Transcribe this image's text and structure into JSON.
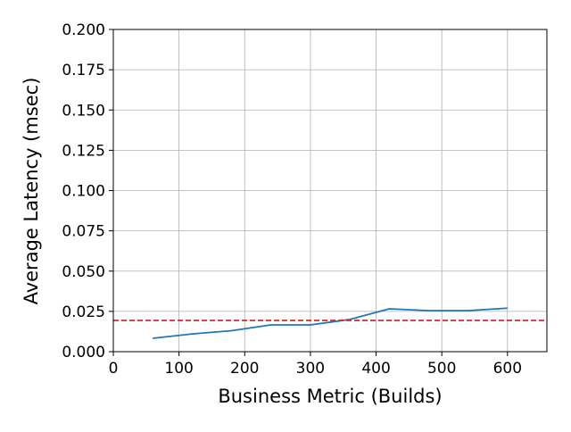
{
  "chart_data": {
    "type": "line",
    "x_label": "Business Metric (Builds)",
    "y_label": "Average Latency (msec)",
    "x": [
      60,
      120,
      180,
      240,
      300,
      360,
      420,
      480,
      540,
      600
    ],
    "series": [
      {
        "color": "#1f77b4",
        "values": [
          0.0083,
          0.011,
          0.013,
          0.0166,
          0.0166,
          0.02,
          0.0266,
          0.0255,
          0.0255,
          0.027
        ]
      }
    ],
    "reference_line": {
      "value": 0.0194,
      "color": "#d62728",
      "style": "dashed"
    },
    "xlim": [
      0,
      660
    ],
    "xticks": [
      0,
      100,
      200,
      300,
      400,
      500,
      600
    ],
    "ylim": [
      0,
      0.2
    ],
    "yticks": [
      {
        "value": 0,
        "label": "0.000"
      },
      {
        "value": 0.025,
        "label": "0.025"
      },
      {
        "value": 0.05,
        "label": "0.050"
      },
      {
        "value": 0.075,
        "label": "0.075"
      },
      {
        "value": 0.1,
        "label": "0.100"
      },
      {
        "value": 0.125,
        "label": "0.125"
      },
      {
        "value": 0.15,
        "label": "0.150"
      },
      {
        "value": 0.175,
        "label": "0.175"
      },
      {
        "value": 0.2,
        "label": "0.200"
      }
    ],
    "grid": true
  }
}
